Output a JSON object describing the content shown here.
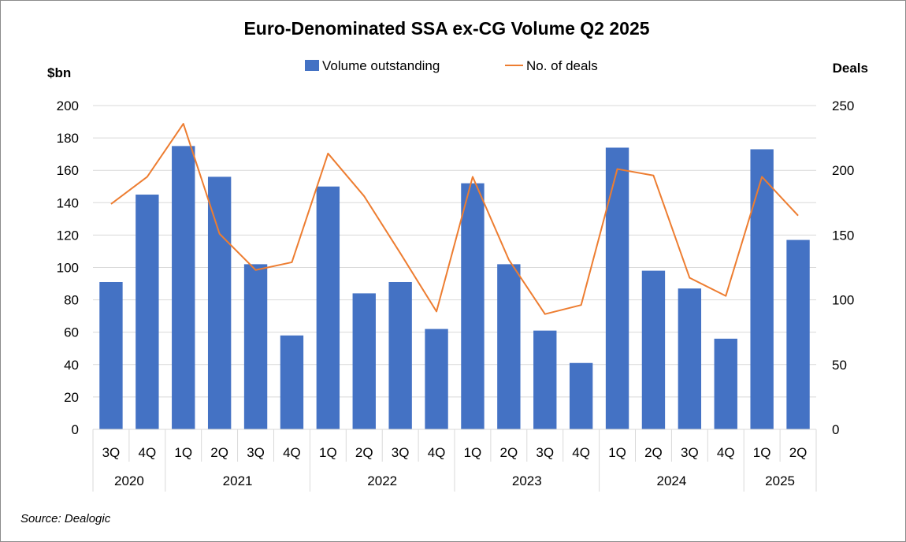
{
  "chart_data": {
    "type": "bar",
    "title": "Euro-Denominated SSA ex-CG Volume Q2 2025",
    "ylabel": "$bn",
    "y2label": "Deals",
    "ylim": [
      0,
      200
    ],
    "y2lim": [
      0,
      250
    ],
    "yticks": [
      0,
      20,
      40,
      60,
      80,
      100,
      120,
      140,
      160,
      180,
      200
    ],
    "y2ticks": [
      0,
      50,
      100,
      150,
      200,
      250
    ],
    "grid": true,
    "categories": [
      "3Q",
      "4Q",
      "1Q",
      "2Q",
      "3Q",
      "4Q",
      "1Q",
      "2Q",
      "3Q",
      "4Q",
      "1Q",
      "2Q",
      "3Q",
      "4Q",
      "1Q",
      "2Q",
      "3Q",
      "4Q",
      "1Q",
      "2Q"
    ],
    "year_groups": [
      {
        "label": "2020",
        "count": 2
      },
      {
        "label": "2021",
        "count": 4
      },
      {
        "label": "2022",
        "count": 4
      },
      {
        "label": "2023",
        "count": 4
      },
      {
        "label": "2024",
        "count": 4
      },
      {
        "label": "2025",
        "count": 2
      }
    ],
    "series": [
      {
        "name": "Volume outstanding",
        "type": "bar",
        "axis": "left",
        "color": "#4472c4",
        "values": [
          91,
          145,
          175,
          156,
          102,
          58,
          150,
          84,
          91,
          62,
          152,
          102,
          61,
          41,
          174,
          98,
          87,
          56,
          173,
          117
        ]
      },
      {
        "name": "No. of deals",
        "type": "line",
        "axis": "right",
        "color": "#ed7d31",
        "values": [
          174,
          195,
          236,
          151,
          123,
          129,
          213,
          180,
          136,
          91,
          195,
          131,
          89,
          96,
          201,
          196,
          117,
          103,
          195,
          165
        ]
      }
    ],
    "legend": "top-center",
    "source": "Source: Dealogic"
  }
}
